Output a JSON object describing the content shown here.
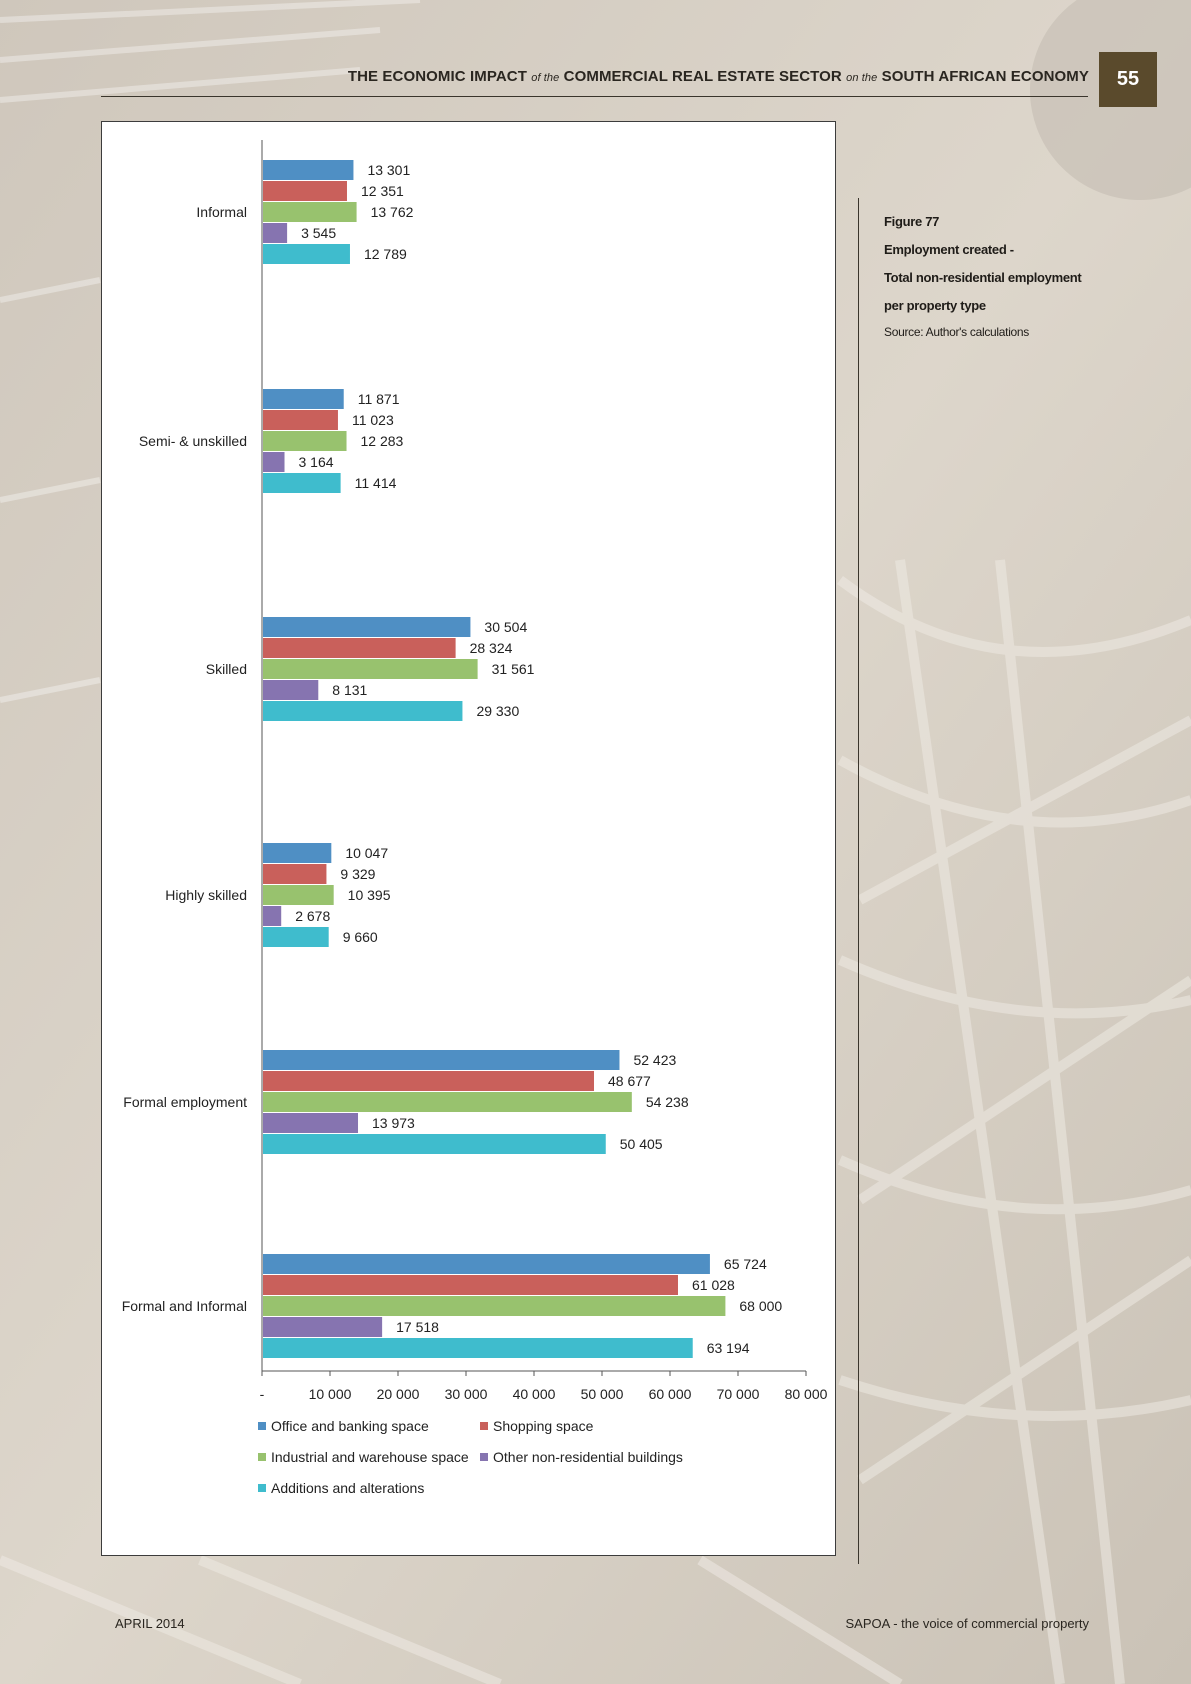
{
  "header": {
    "part1": "THE ECONOMIC IMPACT",
    "of": "of the",
    "part2": "COMMERCIAL REAL ESTATE SECTOR",
    "on": "on the",
    "part3": "SOUTH AFRICAN ECONOMY",
    "page_number": "55"
  },
  "caption": {
    "figure": "Figure 77",
    "line1": "Employment created -",
    "line2": "Total non-residential employment",
    "line3": "per property type",
    "source": "Source: Author's calculations"
  },
  "footer": {
    "left": "APRIL 2014",
    "right": "SAPOA - the voice of commercial property"
  },
  "chart_data": {
    "type": "bar",
    "orientation": "horizontal",
    "categories": [
      "Informal",
      "Semi- & unskilled",
      "Skilled",
      "Highly skilled",
      "Formal employment",
      "Formal and Informal"
    ],
    "series": [
      {
        "name": "Office and banking space",
        "color": "#4f8fc4",
        "values": [
          13301,
          11871,
          30504,
          10047,
          52423,
          65724
        ],
        "labels": [
          "13 301",
          "11 871",
          "30 504",
          "10 047",
          "52 423",
          "65 724"
        ]
      },
      {
        "name": "Shopping space",
        "color": "#c9605b",
        "values": [
          12351,
          11023,
          28324,
          9329,
          48677,
          61028
        ],
        "labels": [
          "12 351",
          "11 023",
          "28 324",
          "9 329",
          "48 677",
          "61 028"
        ]
      },
      {
        "name": "Industrial and warehouse space",
        "color": "#98c26e",
        "values": [
          13762,
          12283,
          31561,
          10395,
          54238,
          68000
        ],
        "labels": [
          "13 762",
          "12 283",
          "31 561",
          "10 395",
          "54 238",
          "68 000"
        ]
      },
      {
        "name": "Other non-residential buildings",
        "color": "#8674b0",
        "values": [
          3545,
          3164,
          8131,
          2678,
          13973,
          17518
        ],
        "labels": [
          "3 545",
          "3 164",
          "8 131",
          "2 678",
          "13 973",
          "17 518"
        ]
      },
      {
        "name": "Additions and alterations",
        "color": "#3fbccd",
        "values": [
          12789,
          11414,
          29330,
          9660,
          50405,
          63194
        ],
        "labels": [
          "12 789",
          "11 414",
          "29 330",
          "9 660",
          "50 405",
          "63 194"
        ]
      }
    ],
    "xlim": [
      0,
      80000
    ],
    "xticks": [
      0,
      10000,
      20000,
      30000,
      40000,
      50000,
      60000,
      70000,
      80000
    ],
    "xtick_labels": [
      "-",
      "10 000",
      "20 000",
      "30 000",
      "40 000",
      "50 000",
      "60 000",
      "70 000",
      "80 000"
    ],
    "legend_position": "bottom",
    "grid": false
  }
}
